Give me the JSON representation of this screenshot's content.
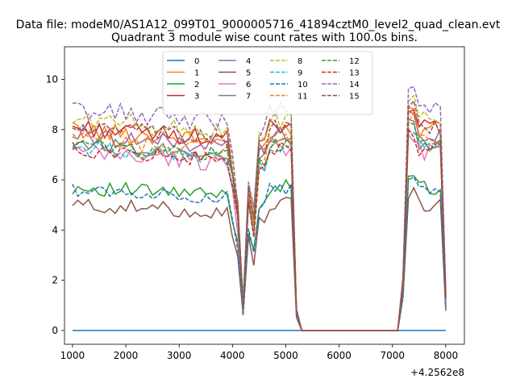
{
  "chart_data": {
    "type": "line",
    "suptitle": "Data file: modeM0/AS1A12_099T01_9000005716_41894cztM0_level2_quad_clean.evt",
    "title": "Quadrant 3 module wise count rates with 100.0s bins.",
    "xlabel": "",
    "ylabel": "",
    "x_offset_label": "+4.2562e8",
    "xlim": [
      850,
      8350
    ],
    "ylim": [
      -0.55,
      11.3
    ],
    "xticks": [
      1000,
      2000,
      3000,
      4000,
      5000,
      6000,
      7000,
      8000
    ],
    "yticks": [
      0,
      2,
      4,
      6,
      8,
      10
    ],
    "xtick_labels": [
      "1000",
      "2000",
      "3000",
      "4000",
      "5000",
      "6000",
      "7000",
      "8000"
    ],
    "ytick_labels": [
      "0",
      "2",
      "4",
      "6",
      "8",
      "10"
    ],
    "grid": false,
    "legend_position": "top-center",
    "legend_columns": 4,
    "series": [
      {
        "name": "0",
        "color": "#1f77b4",
        "dash": "solid",
        "base": 0,
        "amp": 0,
        "seed": 0
      },
      {
        "name": "1",
        "color": "#ff7f0e",
        "dash": "solid",
        "base": 8.0,
        "amp": 0.35,
        "seed": 1
      },
      {
        "name": "2",
        "color": "#2ca02c",
        "dash": "solid",
        "base": 5.7,
        "amp": 0.3,
        "seed": 2
      },
      {
        "name": "3",
        "color": "#d62728",
        "dash": "solid",
        "base": 8.1,
        "amp": 0.35,
        "seed": 3
      },
      {
        "name": "4",
        "color": "#9467bd",
        "dash": "solid",
        "base": 7.8,
        "amp": 0.35,
        "seed": 4
      },
      {
        "name": "5",
        "color": "#8c564b",
        "dash": "solid",
        "base": 5.0,
        "amp": 0.3,
        "seed": 5
      },
      {
        "name": "6",
        "color": "#e377c2",
        "dash": "solid",
        "base": 7.1,
        "amp": 0.4,
        "seed": 6
      },
      {
        "name": "7",
        "color": "#7f7f7f",
        "dash": "solid",
        "base": 7.5,
        "amp": 0.3,
        "seed": 7
      },
      {
        "name": "8",
        "color": "#bcbd22",
        "dash": "dashed",
        "base": 8.4,
        "amp": 0.4,
        "seed": 8
      },
      {
        "name": "9",
        "color": "#17becf",
        "dash": "dashed",
        "base": 7.3,
        "amp": 0.3,
        "seed": 9
      },
      {
        "name": "10",
        "color": "#1f77b4",
        "dash": "dashed",
        "base": 5.6,
        "amp": 0.25,
        "seed": 10
      },
      {
        "name": "11",
        "color": "#ff7f0e",
        "dash": "dashed",
        "base": 7.6,
        "amp": 0.35,
        "seed": 11
      },
      {
        "name": "12",
        "color": "#2ca02c",
        "dash": "dashed",
        "base": 7.4,
        "amp": 0.3,
        "seed": 12
      },
      {
        "name": "13",
        "color": "#d62728",
        "dash": "dashed",
        "base": 7.2,
        "amp": 0.3,
        "seed": 13
      },
      {
        "name": "14",
        "color": "#9467bd",
        "dash": "dashed",
        "base": 8.8,
        "amp": 0.4,
        "seed": 14
      },
      {
        "name": "15",
        "color": "#8c564b",
        "dash": "dashed",
        "base": 8.1,
        "amp": 0.35,
        "seed": 15
      }
    ],
    "x_start": 1000,
    "x_end": 8000,
    "x_step": 100
  }
}
